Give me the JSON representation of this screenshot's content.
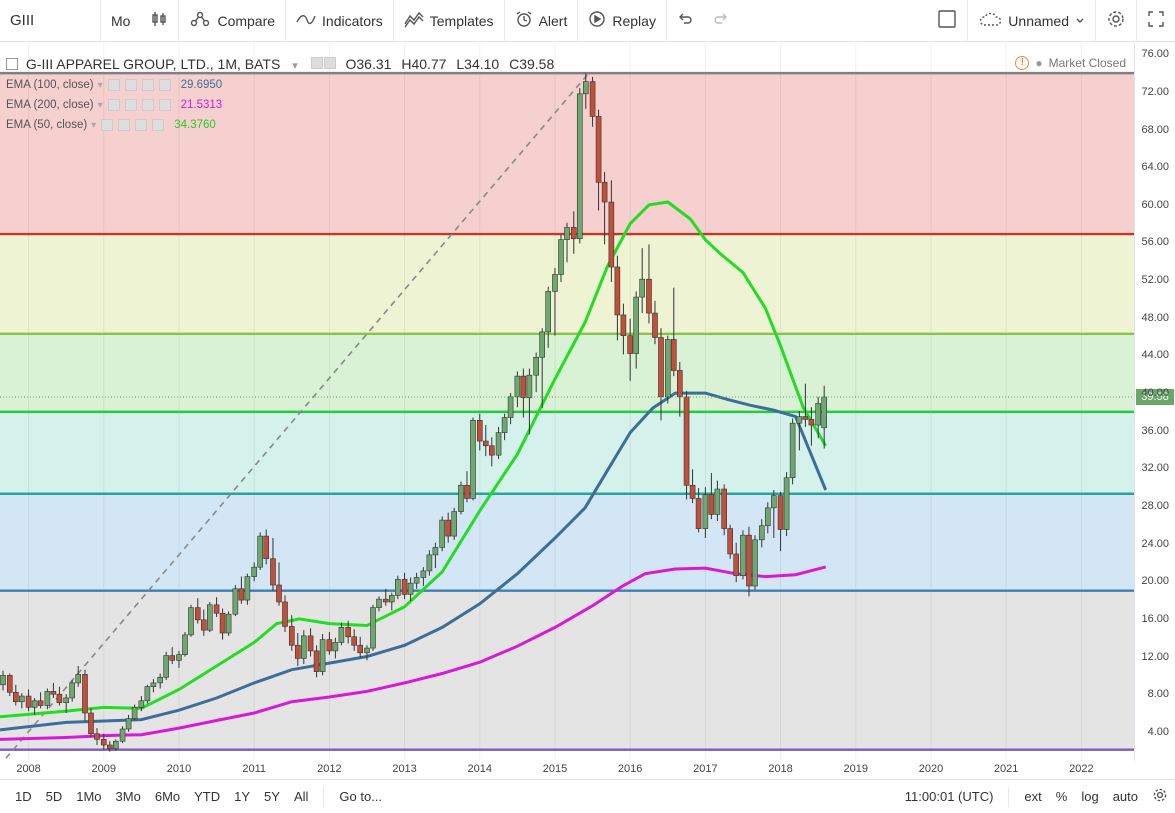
{
  "toolbar": {
    "symbol": "GIII",
    "interval": "Mo",
    "compare": "Compare",
    "indicators": "Indicators",
    "templates": "Templates",
    "alert": "Alert",
    "replay": "Replay",
    "layout_name": "Unnamed"
  },
  "legend": {
    "title": "G-III APPAREL GROUP, LTD., 1M, BATS",
    "open": "O36.31",
    "high": "H40.77",
    "low": "L34.10",
    "close": "C39.58",
    "market_status": "Market Closed"
  },
  "indicators": [
    {
      "label": "EMA (100, close)",
      "value": "29.6950",
      "color": "#3d6e9a"
    },
    {
      "label": "EMA (200, close)",
      "value": "21.5313",
      "color": "#d81ad8"
    },
    {
      "label": "EMA (50, close)",
      "value": "34.3760",
      "color": "#22cc22"
    }
  ],
  "price_axis": [
    "76.00",
    "72.00",
    "68.00",
    "64.00",
    "60.00",
    "56.00",
    "52.00",
    "48.00",
    "44.00",
    "40.00",
    "36.00",
    "32.00",
    "28.00",
    "24.00",
    "20.00",
    "16.00",
    "12.00",
    "8.00",
    "4.00"
  ],
  "last_price": "39.58",
  "time_axis": [
    "2008",
    "2009",
    "2010",
    "2011",
    "2012",
    "2013",
    "2014",
    "2015",
    "2016",
    "2017",
    "2018",
    "2019",
    "2020",
    "2021",
    "2022"
  ],
  "fib_levels": [
    {
      "price": 74.0,
      "color": "#808080",
      "fill": "#f6cfcf"
    },
    {
      "price": 56.9,
      "color": "#c0392b",
      "fill": "#eef3d3"
    },
    {
      "price": 46.3,
      "color": "#8bc34a",
      "fill": "#d9f1d5"
    },
    {
      "price": 38.0,
      "color": "#27c93f",
      "fill": "#d5f1ec"
    },
    {
      "price": 29.3,
      "color": "#26a69a",
      "fill": "#d3e6f5"
    },
    {
      "price": 19.0,
      "color": "#3d7fb8",
      "fill": "#e4e4e4"
    },
    {
      "price": 2.1,
      "color": "#7e57c2",
      "fill": "#ffffff"
    }
  ],
  "range_price": {
    "min": 0.9,
    "max": 77.2
  },
  "time_range": {
    "start": 2007.62,
    "end": 2022.7
  },
  "trend_line": {
    "from": [
      2007.7,
      1.2
    ],
    "to": [
      2015.45,
      74.0
    ]
  },
  "candles": [
    [
      2007.66,
      9.0,
      10.5,
      8.4,
      10.0
    ],
    [
      2007.75,
      10.0,
      10.2,
      7.8,
      8.2
    ],
    [
      2007.83,
      8.2,
      9.0,
      6.8,
      7.2
    ],
    [
      2007.91,
      7.2,
      8.1,
      6.5,
      7.8
    ],
    [
      2008.0,
      7.8,
      8.5,
      6.2,
      6.6
    ],
    [
      2008.08,
      6.6,
      7.6,
      5.8,
      7.3
    ],
    [
      2008.16,
      7.3,
      8.2,
      6.5,
      6.8
    ],
    [
      2008.25,
      6.8,
      8.6,
      6.4,
      8.3
    ],
    [
      2008.33,
      8.3,
      9.2,
      7.6,
      8.0
    ],
    [
      2008.41,
      8.0,
      8.8,
      6.8,
      7.1
    ],
    [
      2008.5,
      7.1,
      8.0,
      6.0,
      7.6
    ],
    [
      2008.58,
      7.6,
      9.5,
      7.2,
      9.2
    ],
    [
      2008.66,
      9.2,
      11.0,
      8.8,
      10.1
    ],
    [
      2008.75,
      10.1,
      10.6,
      5.2,
      6.0
    ],
    [
      2008.83,
      6.0,
      6.5,
      3.4,
      3.8
    ],
    [
      2008.91,
      3.8,
      4.4,
      2.6,
      3.2
    ],
    [
      2009.0,
      3.2,
      3.8,
      2.1,
      2.6
    ],
    [
      2009.08,
      2.6,
      3.0,
      1.9,
      2.2
    ],
    [
      2009.16,
      2.2,
      3.2,
      2.0,
      3.0
    ],
    [
      2009.25,
      3.0,
      4.6,
      2.8,
      4.3
    ],
    [
      2009.33,
      4.3,
      5.8,
      4.0,
      5.4
    ],
    [
      2009.41,
      5.4,
      6.9,
      5.2,
      6.6
    ],
    [
      2009.5,
      6.6,
      7.8,
      6.2,
      7.3
    ],
    [
      2009.58,
      7.3,
      9.0,
      7.0,
      8.8
    ],
    [
      2009.66,
      8.8,
      9.6,
      8.2,
      9.2
    ],
    [
      2009.75,
      9.2,
      10.2,
      8.6,
      9.8
    ],
    [
      2009.83,
      9.8,
      12.5,
      9.5,
      12.1
    ],
    [
      2009.91,
      12.1,
      13.0,
      11.2,
      11.6
    ],
    [
      2010.0,
      11.6,
      12.6,
      10.8,
      12.2
    ],
    [
      2010.08,
      12.2,
      14.6,
      12.0,
      14.3
    ],
    [
      2010.16,
      14.3,
      17.5,
      14.1,
      17.2
    ],
    [
      2010.25,
      17.2,
      18.2,
      15.5,
      15.9
    ],
    [
      2010.33,
      15.9,
      17.0,
      14.2,
      14.8
    ],
    [
      2010.41,
      14.8,
      17.8,
      14.6,
      17.5
    ],
    [
      2010.5,
      17.5,
      18.3,
      16.2,
      16.6
    ],
    [
      2010.58,
      16.6,
      17.1,
      13.8,
      14.5
    ],
    [
      2010.66,
      14.5,
      16.8,
      14.2,
      16.5
    ],
    [
      2010.75,
      16.5,
      19.6,
      16.3,
      19.2
    ],
    [
      2010.83,
      19.2,
      20.5,
      17.6,
      18.0
    ],
    [
      2010.91,
      18.0,
      20.8,
      17.5,
      20.5
    ],
    [
      2011.0,
      20.5,
      22.0,
      20.0,
      21.5
    ],
    [
      2011.08,
      21.5,
      25.2,
      21.2,
      24.8
    ],
    [
      2011.16,
      24.8,
      25.5,
      21.8,
      22.4
    ],
    [
      2011.25,
      22.4,
      24.6,
      19.0,
      19.6
    ],
    [
      2011.33,
      19.6,
      22.0,
      17.4,
      17.8
    ],
    [
      2011.41,
      17.8,
      18.5,
      14.6,
      15.2
    ],
    [
      2011.5,
      15.2,
      16.4,
      12.6,
      13.2
    ],
    [
      2011.58,
      13.2,
      14.5,
      11.0,
      11.8
    ],
    [
      2011.66,
      11.8,
      14.8,
      11.2,
      14.2
    ],
    [
      2011.75,
      14.2,
      15.0,
      12.0,
      12.6
    ],
    [
      2011.83,
      12.6,
      13.2,
      9.8,
      10.4
    ],
    [
      2011.91,
      10.4,
      14.4,
      10.0,
      13.8
    ],
    [
      2012.0,
      13.8,
      14.6,
      12.2,
      12.6
    ],
    [
      2012.08,
      12.6,
      14.0,
      11.8,
      13.5
    ],
    [
      2012.16,
      13.5,
      15.6,
      13.2,
      15.1
    ],
    [
      2012.25,
      15.1,
      15.8,
      13.4,
      14.1
    ],
    [
      2012.33,
      14.1,
      14.9,
      12.6,
      13.2
    ],
    [
      2012.41,
      13.2,
      14.1,
      11.9,
      12.4
    ],
    [
      2012.5,
      12.4,
      13.2,
      11.6,
      12.9
    ],
    [
      2012.58,
      12.9,
      17.5,
      12.6,
      17.2
    ],
    [
      2012.66,
      17.2,
      18.4,
      16.8,
      18.1
    ],
    [
      2012.75,
      18.1,
      19.2,
      17.4,
      17.8
    ],
    [
      2012.83,
      17.8,
      18.8,
      16.9,
      18.5
    ],
    [
      2012.91,
      18.5,
      20.6,
      18.1,
      20.2
    ],
    [
      2013.0,
      20.2,
      20.9,
      18.1,
      18.6
    ],
    [
      2013.08,
      18.6,
      20.4,
      17.9,
      19.8
    ],
    [
      2013.16,
      19.8,
      20.9,
      19.2,
      20.4
    ],
    [
      2013.25,
      20.4,
      21.5,
      19.5,
      21.1
    ],
    [
      2013.33,
      21.1,
      23.3,
      20.6,
      22.8
    ],
    [
      2013.41,
      22.8,
      24.1,
      21.4,
      23.6
    ],
    [
      2013.5,
      23.6,
      26.9,
      23.2,
      26.5
    ],
    [
      2013.58,
      26.5,
      27.3,
      24.1,
      24.8
    ],
    [
      2013.66,
      24.8,
      27.8,
      24.4,
      27.4
    ],
    [
      2013.75,
      27.4,
      30.6,
      27.1,
      30.2
    ],
    [
      2013.83,
      30.2,
      31.7,
      28.4,
      28.8
    ],
    [
      2013.91,
      28.8,
      37.4,
      28.6,
      37.1
    ],
    [
      2014.0,
      37.1,
      37.8,
      33.9,
      34.9
    ],
    [
      2014.08,
      34.9,
      36.6,
      33.3,
      34.4
    ],
    [
      2014.16,
      34.4,
      35.3,
      32.2,
      33.4
    ],
    [
      2014.25,
      33.4,
      36.4,
      33.0,
      35.8
    ],
    [
      2014.33,
      35.8,
      37.8,
      35.0,
      37.4
    ],
    [
      2014.41,
      37.4,
      40.0,
      36.7,
      39.6
    ],
    [
      2014.5,
      39.6,
      42.3,
      38.5,
      41.8
    ],
    [
      2014.58,
      41.8,
      42.6,
      37.4,
      39.5
    ],
    [
      2014.66,
      39.5,
      42.6,
      35.6,
      41.9
    ],
    [
      2014.75,
      41.9,
      44.3,
      40.1,
      43.8
    ],
    [
      2014.83,
      43.8,
      46.9,
      38.4,
      46.5
    ],
    [
      2014.91,
      46.5,
      51.3,
      44.8,
      50.8
    ],
    [
      2015.0,
      50.8,
      53.3,
      46.1,
      52.6
    ],
    [
      2015.08,
      52.6,
      56.8,
      51.8,
      56.3
    ],
    [
      2015.16,
      56.3,
      58.1,
      53.9,
      57.6
    ],
    [
      2015.25,
      57.6,
      59.3,
      54.8,
      56.4
    ],
    [
      2015.33,
      56.4,
      72.4,
      55.9,
      71.8
    ],
    [
      2015.41,
      71.8,
      74.0,
      70.2,
      73.1
    ],
    [
      2015.5,
      73.1,
      73.6,
      68.3,
      69.4
    ],
    [
      2015.58,
      69.4,
      70.1,
      59.4,
      62.4
    ],
    [
      2015.66,
      62.4,
      63.5,
      55.8,
      60.3
    ],
    [
      2015.75,
      60.3,
      62.6,
      51.8,
      53.4
    ],
    [
      2015.83,
      53.4,
      54.6,
      45.6,
      48.3
    ],
    [
      2015.91,
      48.3,
      49.5,
      44.1,
      46.1
    ],
    [
      2016.0,
      46.1,
      47.9,
      41.3,
      44.2
    ],
    [
      2016.08,
      44.2,
      50.8,
      42.6,
      50.2
    ],
    [
      2016.16,
      50.2,
      55.4,
      48.5,
      52.1
    ],
    [
      2016.25,
      52.1,
      55.8,
      47.4,
      48.5
    ],
    [
      2016.33,
      48.5,
      49.8,
      45.2,
      45.9
    ],
    [
      2016.41,
      45.9,
      46.9,
      37.1,
      39.6
    ],
    [
      2016.5,
      39.6,
      46.1,
      38.9,
      45.7
    ],
    [
      2016.58,
      45.7,
      51.2,
      41.8,
      42.4
    ],
    [
      2016.66,
      42.4,
      43.3,
      37.5,
      39.6
    ],
    [
      2016.75,
      39.6,
      40.2,
      28.7,
      30.2
    ],
    [
      2016.83,
      30.2,
      31.9,
      28.3,
      28.8
    ],
    [
      2016.91,
      28.8,
      29.9,
      25.2,
      25.6
    ],
    [
      2017.0,
      25.6,
      30.0,
      24.6,
      29.2
    ],
    [
      2017.08,
      29.2,
      31.5,
      26.6,
      27.1
    ],
    [
      2017.16,
      27.1,
      30.7,
      26.4,
      29.8
    ],
    [
      2017.25,
      29.8,
      30.3,
      24.9,
      25.6
    ],
    [
      2017.33,
      25.6,
      26.0,
      22.4,
      22.9
    ],
    [
      2017.41,
      22.9,
      24.1,
      19.9,
      20.6
    ],
    [
      2017.5,
      20.6,
      25.4,
      20.2,
      24.9
    ],
    [
      2017.58,
      24.9,
      25.8,
      18.4,
      19.5
    ],
    [
      2017.66,
      19.5,
      24.9,
      19.1,
      24.4
    ],
    [
      2017.75,
      24.4,
      26.6,
      23.6,
      25.9
    ],
    [
      2017.83,
      25.9,
      28.4,
      25.1,
      27.8
    ],
    [
      2017.91,
      27.8,
      29.7,
      24.6,
      29.1
    ],
    [
      2018.0,
      29.1,
      29.5,
      23.2,
      25.5
    ],
    [
      2018.08,
      25.5,
      31.6,
      24.8,
      31.0
    ],
    [
      2018.16,
      31.0,
      37.3,
      30.3,
      36.8
    ],
    [
      2018.25,
      36.8,
      38.1,
      33.9,
      37.5
    ],
    [
      2018.33,
      37.5,
      41.0,
      36.4,
      37.2
    ],
    [
      2018.41,
      37.2,
      38.5,
      34.4,
      36.6
    ],
    [
      2018.5,
      36.6,
      39.6,
      35.2,
      38.9
    ],
    [
      2018.58,
      36.31,
      40.77,
      34.1,
      39.58
    ]
  ],
  "ema50": [
    [
      2007.62,
      5.6
    ],
    [
      2008.5,
      6.2
    ],
    [
      2009.0,
      6.6
    ],
    [
      2009.5,
      6.5
    ],
    [
      2010.0,
      8.5
    ],
    [
      2010.5,
      11.0
    ],
    [
      2011.0,
      13.5
    ],
    [
      2011.3,
      15.5
    ],
    [
      2011.6,
      16.0
    ],
    [
      2012.0,
      15.5
    ],
    [
      2012.5,
      15.3
    ],
    [
      2013.0,
      17.3
    ],
    [
      2013.5,
      21.0
    ],
    [
      2014.0,
      27.5
    ],
    [
      2014.5,
      33.5
    ],
    [
      2015.0,
      41.5
    ],
    [
      2015.4,
      47.5
    ],
    [
      2015.7,
      53.5
    ],
    [
      2016.0,
      58.0
    ],
    [
      2016.25,
      60.0
    ],
    [
      2016.5,
      60.3
    ],
    [
      2016.8,
      58.5
    ],
    [
      2017.0,
      56.3
    ],
    [
      2017.2,
      54.8
    ],
    [
      2017.5,
      52.8
    ],
    [
      2017.8,
      49.0
    ],
    [
      2018.0,
      45.0
    ],
    [
      2018.3,
      38.5
    ],
    [
      2018.6,
      34.38
    ]
  ],
  "ema100": [
    [
      2007.62,
      4.2
    ],
    [
      2008.5,
      5.0
    ],
    [
      2009.5,
      5.3
    ],
    [
      2010.0,
      6.3
    ],
    [
      2010.5,
      7.6
    ],
    [
      2011.0,
      9.2
    ],
    [
      2011.5,
      10.6
    ],
    [
      2012.0,
      11.3
    ],
    [
      2012.5,
      12.0
    ],
    [
      2013.0,
      13.2
    ],
    [
      2013.5,
      15.1
    ],
    [
      2014.0,
      17.6
    ],
    [
      2014.5,
      20.8
    ],
    [
      2015.0,
      24.6
    ],
    [
      2015.4,
      27.8
    ],
    [
      2015.7,
      31.8
    ],
    [
      2016.0,
      35.8
    ],
    [
      2016.3,
      38.4
    ],
    [
      2016.6,
      40.0
    ],
    [
      2017.0,
      40.0
    ],
    [
      2017.3,
      39.3
    ],
    [
      2017.6,
      38.7
    ],
    [
      2017.9,
      38.2
    ],
    [
      2018.2,
      37.5
    ],
    [
      2018.6,
      29.7
    ]
  ],
  "ema200": [
    [
      2007.62,
      3.2
    ],
    [
      2008.5,
      3.4
    ],
    [
      2009.0,
      3.6
    ],
    [
      2009.5,
      3.7
    ],
    [
      2010.0,
      4.4
    ],
    [
      2010.5,
      5.2
    ],
    [
      2011.0,
      6.0
    ],
    [
      2011.5,
      7.2
    ],
    [
      2012.0,
      7.7
    ],
    [
      2012.5,
      8.3
    ],
    [
      2013.0,
      9.2
    ],
    [
      2013.5,
      10.2
    ],
    [
      2014.0,
      11.4
    ],
    [
      2014.5,
      13.1
    ],
    [
      2015.0,
      15.1
    ],
    [
      2015.5,
      17.4
    ],
    [
      2015.9,
      19.5
    ],
    [
      2016.2,
      20.8
    ],
    [
      2016.6,
      21.3
    ],
    [
      2017.0,
      21.4
    ],
    [
      2017.4,
      20.8
    ],
    [
      2017.8,
      20.5
    ],
    [
      2018.2,
      20.7
    ],
    [
      2018.6,
      21.53
    ]
  ]
}
